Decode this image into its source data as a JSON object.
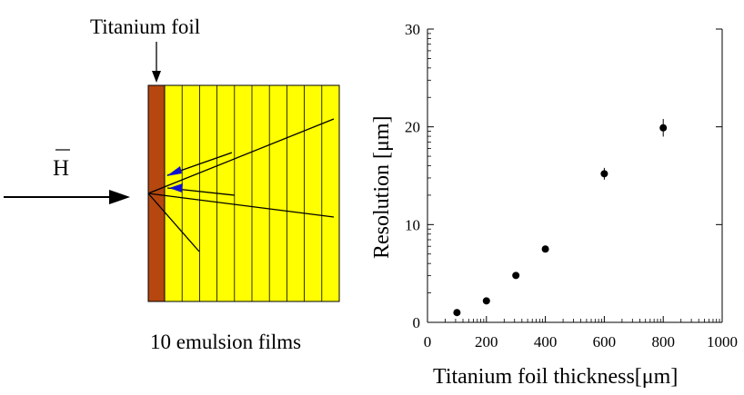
{
  "diagram": {
    "foil_label": "Titanium foil",
    "beam_label": "H",
    "films_label": "10 emulsion films",
    "colors": {
      "foil": "#b5470f",
      "films": "#ffff00",
      "tracks": "#000000",
      "annihilation_arrows": "#1010d0"
    },
    "film_count": 10
  },
  "chart_data": {
    "type": "scatter",
    "title": "",
    "xlabel": "Titanium foil thickness[μm]",
    "ylabel": "Resolution [μm]",
    "xlim": [
      0,
      1000
    ],
    "ylim": [
      0,
      30
    ],
    "xticks": [
      0,
      200,
      400,
      600,
      800,
      1000
    ],
    "yticks": [
      0,
      10,
      20,
      30
    ],
    "grid": false,
    "series": [
      {
        "x": [
          100,
          200,
          300,
          400,
          600,
          800
        ],
        "y": [
          1.0,
          2.2,
          4.8,
          7.5,
          15.2,
          19.9
        ],
        "yerr": [
          0.2,
          0.2,
          0.3,
          0.3,
          0.6,
          0.9
        ]
      }
    ]
  }
}
